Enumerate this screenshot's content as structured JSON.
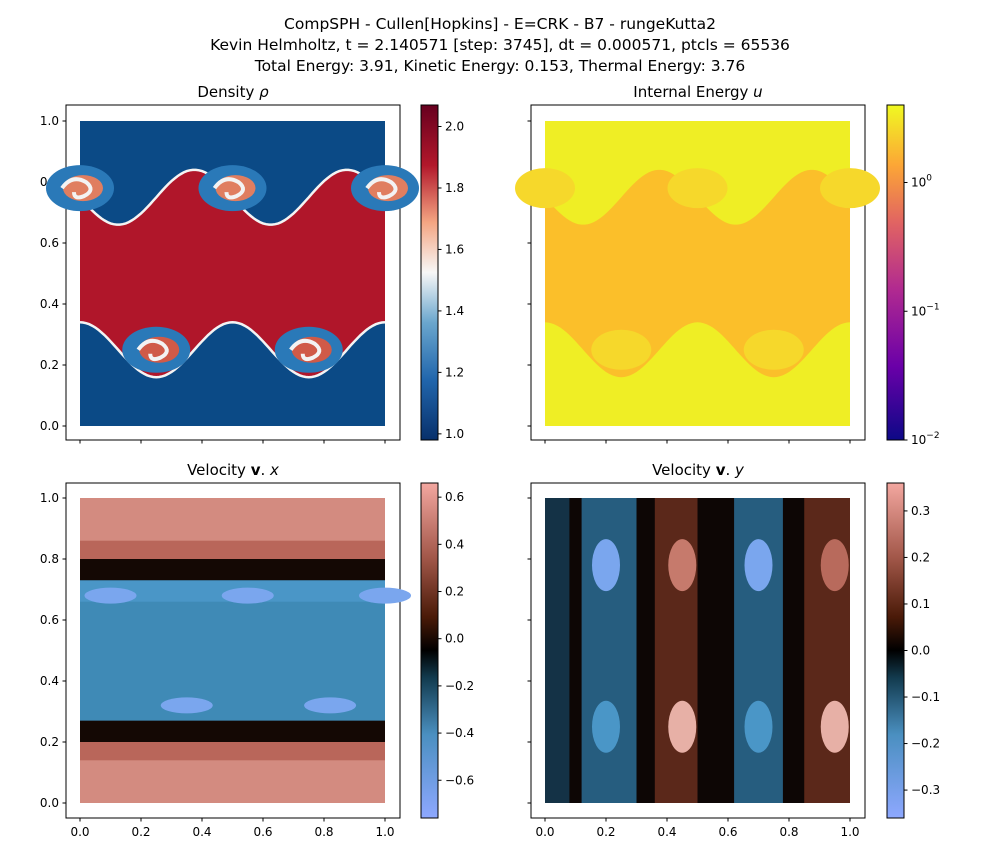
{
  "suptitle": {
    "line1": "CompSPH - Cullen[Hopkins] - E=CRK - B7 - rungeKutta2",
    "line2": "Kevin Helmholtz, t = 2.140571 [step: 3745], dt = 0.000571, ptcls = 65536",
    "line3": "Total Energy: 3.91, Kinetic Energy: 0.153, Thermal Energy: 3.76"
  },
  "colors": {
    "density_low": "#08306b",
    "density_mid": "#f7f7f7",
    "density_high": "#67001f",
    "energy_high": "#f0f921",
    "energy_mid": "#fbbf2a",
    "energy_low": "#0d0887",
    "velocity_low": "#8ea8ff",
    "velocity_zero": "#000000",
    "velocity_high": "#f3a7a0"
  },
  "chart_data": [
    {
      "type": "heatmap",
      "title": "Density ρ",
      "field": "density",
      "colormap": "RdBu_r",
      "xlim": [
        0,
        1
      ],
      "ylim": [
        0,
        1
      ],
      "x_ticks": [
        "0.0",
        "0.2",
        "0.4",
        "0.6",
        "0.8",
        "1.0"
      ],
      "y_ticks": [
        "0.0",
        "0.2",
        "0.4",
        "0.6",
        "0.8",
        "1.0"
      ],
      "show_x_tick_labels": false,
      "show_y_tick_labels": true,
      "colorbar": {
        "range": [
          0.98,
          2.07
        ],
        "scale": "linear",
        "ticks": [
          "1.0",
          "1.2",
          "1.4",
          "1.6",
          "1.8",
          "2.0"
        ]
      },
      "values": {
        "inner_band": 2.0,
        "outer_region": 1.0,
        "band_y": [
          0.25,
          0.75
        ],
        "vortex_centers_top": [
          0.0,
          0.5,
          1.0
        ],
        "vortex_centers_bottom": [
          0.25,
          0.75
        ]
      }
    },
    {
      "type": "heatmap",
      "title": "Internal Energy u",
      "field": "internal_energy",
      "colormap": "plasma",
      "xlim": [
        0,
        1
      ],
      "ylim": [
        0,
        1
      ],
      "x_ticks": [
        "0.0",
        "0.2",
        "0.4",
        "0.6",
        "0.8",
        "1.0"
      ],
      "y_ticks": [
        "0.0",
        "0.2",
        "0.4",
        "0.6",
        "0.8",
        "1.0"
      ],
      "show_x_tick_labels": false,
      "show_y_tick_labels": false,
      "colorbar": {
        "range": [
          0.01,
          4.0
        ],
        "scale": "log",
        "ticks": [
          "10^-2",
          "10^-1",
          "10^0"
        ]
      },
      "values": {
        "inner_band": 1.88,
        "outer_region": 3.75
      }
    },
    {
      "type": "heatmap",
      "title": "Velocity v.x",
      "field": "velocity_x",
      "colormap": "berlin",
      "xlim": [
        0,
        1
      ],
      "ylim": [
        0,
        1
      ],
      "x_ticks": [
        "0.0",
        "0.2",
        "0.4",
        "0.6",
        "0.8",
        "1.0"
      ],
      "y_ticks": [
        "0.0",
        "0.2",
        "0.4",
        "0.6",
        "0.8",
        "1.0"
      ],
      "show_x_tick_labels": true,
      "show_y_tick_labels": true,
      "colorbar": {
        "range": [
          -0.76,
          0.66
        ],
        "scale": "linear",
        "ticks": [
          "−0.6",
          "−0.4",
          "−0.2",
          "0.0",
          "0.2",
          "0.4",
          "0.6"
        ]
      },
      "values": {
        "inner_band": -0.5,
        "outer_region": 0.5
      }
    },
    {
      "type": "heatmap",
      "title": "Velocity v.y",
      "field": "velocity_y",
      "colormap": "berlin",
      "xlim": [
        0,
        1
      ],
      "ylim": [
        0,
        1
      ],
      "x_ticks": [
        "0.0",
        "0.2",
        "0.4",
        "0.6",
        "0.8",
        "1.0"
      ],
      "y_ticks": [
        "0.0",
        "0.2",
        "0.4",
        "0.6",
        "0.8",
        "1.0"
      ],
      "show_x_tick_labels": true,
      "show_y_tick_labels": false,
      "colorbar": {
        "range": [
          -0.36,
          0.36
        ],
        "scale": "linear",
        "ticks": [
          "−0.3",
          "−0.2",
          "−0.1",
          "0.0",
          "0.1",
          "0.2",
          "0.3"
        ]
      },
      "values": {
        "peak_positive": 0.3,
        "peak_negative": -0.3
      }
    }
  ]
}
